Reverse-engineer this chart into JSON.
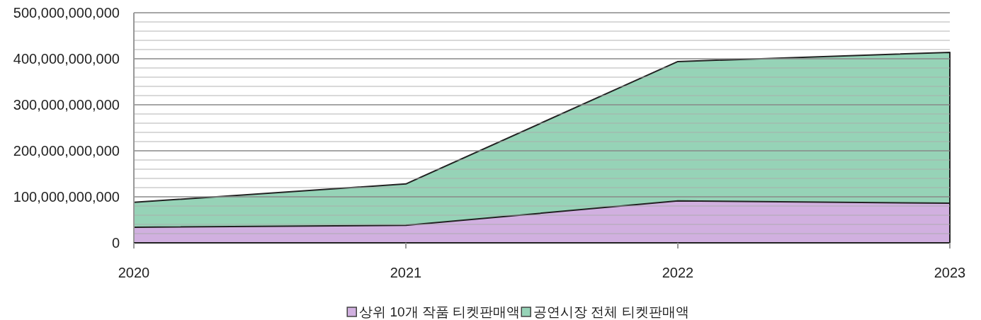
{
  "chart_data": {
    "type": "area",
    "categories": [
      "2020",
      "2021",
      "2022",
      "2023"
    ],
    "series": [
      {
        "name": "상위 10개 작품 티켓판매액",
        "color": "#d1b0e0",
        "values": [
          34000000000,
          38000000000,
          91000000000,
          86000000000
        ]
      },
      {
        "name": "공연시장 전체 티켓판매액",
        "color": "#96d3b7",
        "values": [
          88000000000,
          128000000000,
          394000000000,
          414000000000
        ]
      }
    ],
    "ylim": [
      0,
      500000000000
    ],
    "yticks": [
      {
        "value": 0,
        "label": "0"
      },
      {
        "value": 20000000000,
        "label": null
      },
      {
        "value": 40000000000,
        "label": null
      },
      {
        "value": 60000000000,
        "label": null
      },
      {
        "value": 80000000000,
        "label": null
      },
      {
        "value": 100000000000,
        "label": "100,000,000,000"
      },
      {
        "value": 120000000000,
        "label": null
      },
      {
        "value": 140000000000,
        "label": null
      },
      {
        "value": 160000000000,
        "label": null
      },
      {
        "value": 180000000000,
        "label": null
      },
      {
        "value": 200000000000,
        "label": "200,000,000,000"
      },
      {
        "value": 220000000000,
        "label": null
      },
      {
        "value": 240000000000,
        "label": null
      },
      {
        "value": 260000000000,
        "label": null
      },
      {
        "value": 280000000000,
        "label": null
      },
      {
        "value": 300000000000,
        "label": "300,000,000,000"
      },
      {
        "value": 320000000000,
        "label": null
      },
      {
        "value": 340000000000,
        "label": null
      },
      {
        "value": 360000000000,
        "label": null
      },
      {
        "value": 380000000000,
        "label": null
      },
      {
        "value": 400000000000,
        "label": "400,000,000,000"
      },
      {
        "value": 420000000000,
        "label": null
      },
      {
        "value": 440000000000,
        "label": null
      },
      {
        "value": 460000000000,
        "label": null
      },
      {
        "value": 480000000000,
        "label": null
      },
      {
        "value": 500000000000,
        "label": "500,000,000,000"
      }
    ],
    "grid": "y",
    "legend": "bottom"
  }
}
